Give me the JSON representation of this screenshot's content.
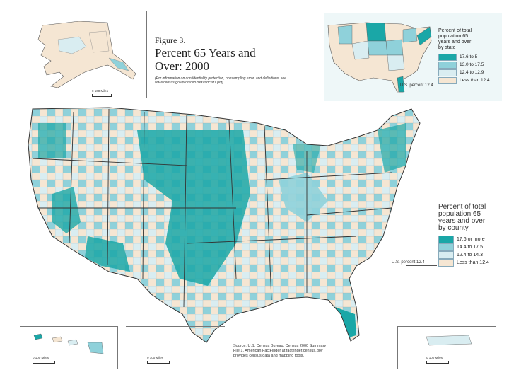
{
  "figure": {
    "label": "Figure 3.",
    "title_line1": "Percent 65 Years and",
    "title_line2": "Over: 2000",
    "note": "(For information on confidentiality protection, nonsampling error, and definitions, see www.census.gov/prod/cen2000/doc/sf1.pdf)"
  },
  "state_legend": {
    "title_line1": "Percent of total",
    "title_line2": "population 65",
    "title_line3": "years and over",
    "title_line4": "by state",
    "items": [
      {
        "label": "17.6 to 5",
        "color": "#1aa7a7"
      },
      {
        "label": "13.0 to 17.5",
        "color": "#8fd1da"
      },
      {
        "label": "12.4 to 12.9",
        "color": "#d9edf1"
      },
      {
        "label": "Less than 12.4",
        "color": "#f5e6d3"
      }
    ],
    "us_percent": "U.S. percent 12.4"
  },
  "county_legend": {
    "title_line1": "Percent of total",
    "title_line2": "population 65",
    "title_line3": "years and over",
    "title_line4": "by county",
    "items": [
      {
        "label": "17.6 or more",
        "color": "#1aa7a7"
      },
      {
        "label": "14.4 to 17.5",
        "color": "#8fd1da"
      },
      {
        "label": "12.4 to 14.3",
        "color": "#d9edf1"
      },
      {
        "label": "Less than 12.4",
        "color": "#f5e6d3"
      }
    ],
    "us_percent": "U.S. percent 12.4"
  },
  "scales": {
    "alaska": "0   100 Miles",
    "hawaii": "0      100 Miles",
    "puerto_rico_left": "0      100 Miles",
    "puerto_rico_right": "0      100 Miles"
  },
  "source": {
    "line1": "Source: U.S. Census Bureau, Census 2000 Summary",
    "line2": "File 1. American FactFinder at factfinder.census.gov",
    "line3": "provides census data and mapping tools."
  },
  "colors": {
    "high": "#1aa7a7",
    "mid": "#8fd1da",
    "low": "#d9edf1",
    "none": "#f5e6d3",
    "boundary": "#333333"
  }
}
